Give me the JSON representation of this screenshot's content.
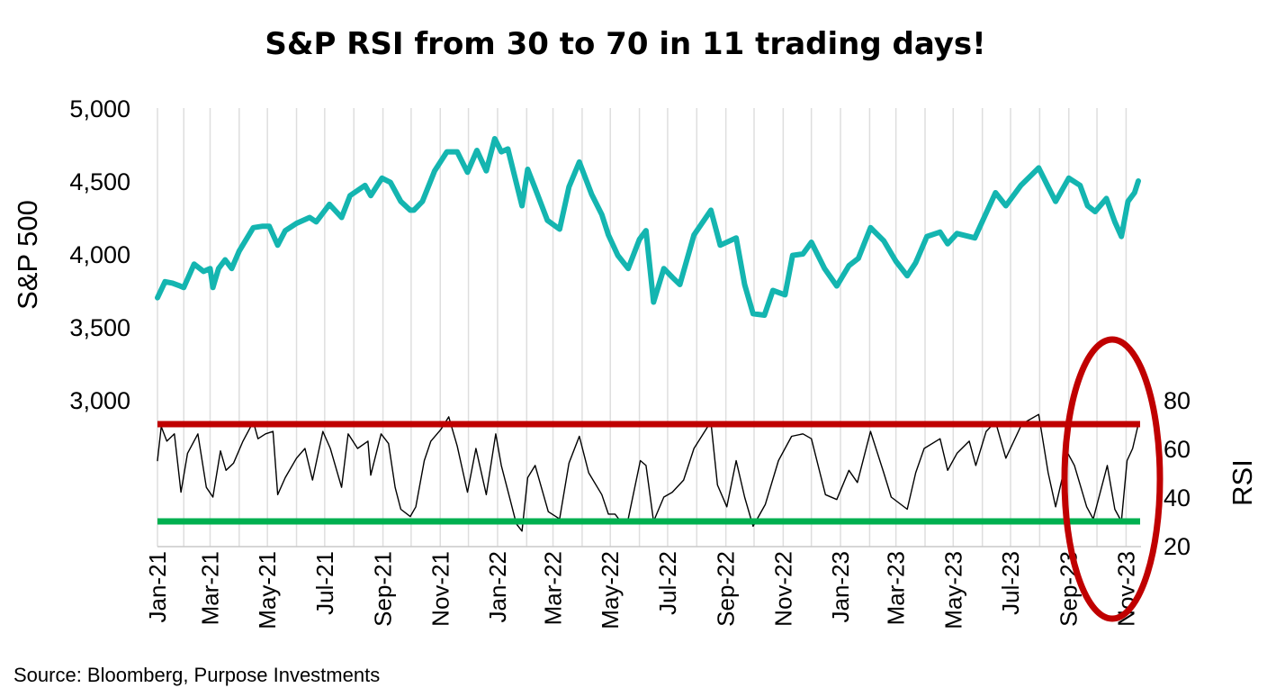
{
  "chart_data": {
    "type": "line",
    "title": "S&P RSI from 30 to 70 in 11 trading days!",
    "source": "Source: Bloomberg, Purpose Investments",
    "x_range": [
      "2021-01-04",
      "2023-11-14"
    ],
    "x_ticks": [
      "Jan-21",
      "Mar-21",
      "May-21",
      "Jul-21",
      "Sep-21",
      "Nov-21",
      "Jan-22",
      "Mar-22",
      "May-22",
      "Jul-22",
      "Sep-22",
      "Nov-22",
      "Jan-23",
      "Mar-23",
      "May-23",
      "Jul-23",
      "Sep-23",
      "Nov-23"
    ],
    "left_axis": {
      "label": "S&P 500",
      "ticks": [
        "5,000",
        "4,500",
        "4,000",
        "3,500",
        "3,000"
      ],
      "range": [
        2000,
        5000
      ]
    },
    "right_axis": {
      "label": "RSI",
      "ticks": [
        "80",
        "60",
        "40",
        "20"
      ],
      "range": [
        20,
        120
      ]
    },
    "reference_lines": [
      {
        "axis": "right",
        "value": 70,
        "color": "#c00000"
      },
      {
        "axis": "right",
        "value": 30,
        "color": "#00b050"
      }
    ],
    "annotation": {
      "shape": "ellipse",
      "color": "#c00000",
      "around": "Sep-23 to Nov-23"
    },
    "series": [
      {
        "key": "spx",
        "axis": "left",
        "color": "#14b5b0",
        "points": [
          [
            "2021-01-04",
            3700
          ],
          [
            "2021-01-12",
            3810
          ],
          [
            "2021-01-20",
            3800
          ],
          [
            "2021-01-28",
            3780
          ],
          [
            "2021-02-01",
            3770
          ],
          [
            "2021-02-12",
            3930
          ],
          [
            "2021-02-22",
            3880
          ],
          [
            "2021-03-01",
            3900
          ],
          [
            "2021-03-04",
            3770
          ],
          [
            "2021-03-10",
            3900
          ],
          [
            "2021-03-17",
            3960
          ],
          [
            "2021-03-24",
            3900
          ],
          [
            "2021-04-01",
            4020
          ],
          [
            "2021-04-16",
            4180
          ],
          [
            "2021-04-26",
            4190
          ],
          [
            "2021-05-03",
            4190
          ],
          [
            "2021-05-12",
            4060
          ],
          [
            "2021-05-20",
            4160
          ],
          [
            "2021-06-01",
            4210
          ],
          [
            "2021-06-15",
            4250
          ],
          [
            "2021-06-22",
            4220
          ],
          [
            "2021-07-06",
            4340
          ],
          [
            "2021-07-19",
            4250
          ],
          [
            "2021-07-28",
            4400
          ],
          [
            "2021-08-13",
            4470
          ],
          [
            "2021-08-19",
            4400
          ],
          [
            "2021-08-31",
            4520
          ],
          [
            "2021-09-09",
            4490
          ],
          [
            "2021-09-20",
            4360
          ],
          [
            "2021-09-30",
            4300
          ],
          [
            "2021-10-04",
            4300
          ],
          [
            "2021-10-13",
            4360
          ],
          [
            "2021-10-26",
            4570
          ],
          [
            "2021-11-08",
            4700
          ],
          [
            "2021-11-19",
            4700
          ],
          [
            "2021-11-30",
            4560
          ],
          [
            "2021-12-10",
            4710
          ],
          [
            "2021-12-20",
            4570
          ],
          [
            "2021-12-29",
            4790
          ],
          [
            "2022-01-05",
            4700
          ],
          [
            "2022-01-12",
            4720
          ],
          [
            "2022-01-27",
            4330
          ],
          [
            "2022-02-02",
            4580
          ],
          [
            "2022-02-10",
            4450
          ],
          [
            "2022-02-23",
            4230
          ],
          [
            "2022-03-08",
            4170
          ],
          [
            "2022-03-18",
            4460
          ],
          [
            "2022-03-29",
            4630
          ],
          [
            "2022-04-11",
            4410
          ],
          [
            "2022-04-22",
            4270
          ],
          [
            "2022-04-29",
            4130
          ],
          [
            "2022-05-09",
            3990
          ],
          [
            "2022-05-20",
            3900
          ],
          [
            "2022-06-01",
            4100
          ],
          [
            "2022-06-08",
            4160
          ],
          [
            "2022-06-16",
            3670
          ],
          [
            "2022-06-27",
            3900
          ],
          [
            "2022-07-06",
            3840
          ],
          [
            "2022-07-14",
            3790
          ],
          [
            "2022-07-29",
            4130
          ],
          [
            "2022-08-16",
            4300
          ],
          [
            "2022-08-26",
            4060
          ],
          [
            "2022-09-12",
            4110
          ],
          [
            "2022-09-21",
            3790
          ],
          [
            "2022-09-30",
            3590
          ],
          [
            "2022-10-12",
            3580
          ],
          [
            "2022-10-21",
            3750
          ],
          [
            "2022-11-03",
            3720
          ],
          [
            "2022-11-11",
            3990
          ],
          [
            "2022-11-22",
            4000
          ],
          [
            "2022-12-01",
            4080
          ],
          [
            "2022-12-15",
            3900
          ],
          [
            "2022-12-28",
            3780
          ],
          [
            "2023-01-10",
            3920
          ],
          [
            "2023-01-20",
            3970
          ],
          [
            "2023-02-02",
            4180
          ],
          [
            "2023-02-16",
            4090
          ],
          [
            "2023-03-01",
            3950
          ],
          [
            "2023-03-13",
            3850
          ],
          [
            "2023-03-22",
            3940
          ],
          [
            "2023-04-03",
            4120
          ],
          [
            "2023-04-17",
            4150
          ],
          [
            "2023-04-25",
            4070
          ],
          [
            "2023-05-05",
            4140
          ],
          [
            "2023-05-24",
            4110
          ],
          [
            "2023-06-05",
            4280
          ],
          [
            "2023-06-15",
            4420
          ],
          [
            "2023-06-26",
            4330
          ],
          [
            "2023-07-12",
            4470
          ],
          [
            "2023-07-31",
            4590
          ],
          [
            "2023-08-10",
            4460
          ],
          [
            "2023-08-18",
            4360
          ],
          [
            "2023-09-01",
            4520
          ],
          [
            "2023-09-13",
            4470
          ],
          [
            "2023-09-21",
            4330
          ],
          [
            "2023-09-29",
            4290
          ],
          [
            "2023-10-11",
            4380
          ],
          [
            "2023-10-20",
            4220
          ],
          [
            "2023-10-27",
            4120
          ],
          [
            "2023-11-03",
            4360
          ],
          [
            "2023-11-10",
            4420
          ],
          [
            "2023-11-14",
            4500
          ]
        ]
      },
      {
        "key": "rsi",
        "axis": "right",
        "color": "#000000",
        "points": [
          [
            "2021-01-04",
            55
          ],
          [
            "2021-01-08",
            69
          ],
          [
            "2021-01-14",
            63
          ],
          [
            "2021-01-22",
            66
          ],
          [
            "2021-01-29",
            42
          ],
          [
            "2021-02-05",
            58
          ],
          [
            "2021-02-16",
            66
          ],
          [
            "2021-02-25",
            44
          ],
          [
            "2021-03-04",
            40
          ],
          [
            "2021-03-12",
            59
          ],
          [
            "2021-03-18",
            51
          ],
          [
            "2021-03-26",
            54
          ],
          [
            "2021-04-05",
            63
          ],
          [
            "2021-04-16",
            71
          ],
          [
            "2021-04-21",
            64
          ],
          [
            "2021-04-29",
            66
          ],
          [
            "2021-05-07",
            67
          ],
          [
            "2021-05-12",
            41
          ],
          [
            "2021-05-20",
            48
          ],
          [
            "2021-06-01",
            56
          ],
          [
            "2021-06-10",
            60
          ],
          [
            "2021-06-18",
            47
          ],
          [
            "2021-06-29",
            67
          ],
          [
            "2021-07-07",
            60
          ],
          [
            "2021-07-19",
            44
          ],
          [
            "2021-07-26",
            66
          ],
          [
            "2021-08-05",
            60
          ],
          [
            "2021-08-16",
            63
          ],
          [
            "2021-08-19",
            49
          ],
          [
            "2021-08-30",
            66
          ],
          [
            "2021-09-07",
            62
          ],
          [
            "2021-09-14",
            44
          ],
          [
            "2021-09-20",
            35
          ],
          [
            "2021-09-30",
            32
          ],
          [
            "2021-10-06",
            36
          ],
          [
            "2021-10-15",
            55
          ],
          [
            "2021-10-22",
            63
          ],
          [
            "2021-11-02",
            68
          ],
          [
            "2021-11-10",
            73
          ],
          [
            "2021-11-19",
            61
          ],
          [
            "2021-11-30",
            42
          ],
          [
            "2021-12-09",
            60
          ],
          [
            "2021-12-20",
            41
          ],
          [
            "2021-12-30",
            66
          ],
          [
            "2022-01-05",
            53
          ],
          [
            "2022-01-13",
            41
          ],
          [
            "2022-01-21",
            29
          ],
          [
            "2022-01-27",
            26
          ],
          [
            "2022-02-02",
            48
          ],
          [
            "2022-02-10",
            53
          ],
          [
            "2022-02-24",
            34
          ],
          [
            "2022-03-08",
            31
          ],
          [
            "2022-03-18",
            54
          ],
          [
            "2022-03-29",
            65
          ],
          [
            "2022-04-08",
            50
          ],
          [
            "2022-04-22",
            41
          ],
          [
            "2022-04-29",
            33
          ],
          [
            "2022-05-06",
            33
          ],
          [
            "2022-05-12",
            30
          ],
          [
            "2022-05-20",
            31
          ],
          [
            "2022-06-02",
            55
          ],
          [
            "2022-06-08",
            53
          ],
          [
            "2022-06-16",
            30
          ],
          [
            "2022-06-27",
            40
          ],
          [
            "2022-07-06",
            42
          ],
          [
            "2022-07-18",
            47
          ],
          [
            "2022-07-29",
            60
          ],
          [
            "2022-08-16",
            71
          ],
          [
            "2022-08-23",
            45
          ],
          [
            "2022-09-02",
            36
          ],
          [
            "2022-09-12",
            55
          ],
          [
            "2022-09-21",
            40
          ],
          [
            "2022-09-30",
            28
          ],
          [
            "2022-10-13",
            37
          ],
          [
            "2022-10-27",
            55
          ],
          [
            "2022-11-10",
            65
          ],
          [
            "2022-11-22",
            66
          ],
          [
            "2022-12-01",
            64
          ],
          [
            "2022-12-16",
            41
          ],
          [
            "2022-12-28",
            39
          ],
          [
            "2023-01-10",
            51
          ],
          [
            "2023-01-19",
            46
          ],
          [
            "2023-02-02",
            67
          ],
          [
            "2023-02-16",
            50
          ],
          [
            "2023-02-24",
            40
          ],
          [
            "2023-03-13",
            35
          ],
          [
            "2023-03-22",
            50
          ],
          [
            "2023-03-31",
            60
          ],
          [
            "2023-04-17",
            64
          ],
          [
            "2023-04-25",
            51
          ],
          [
            "2023-05-05",
            58
          ],
          [
            "2023-05-18",
            63
          ],
          [
            "2023-05-25",
            53
          ],
          [
            "2023-06-05",
            67
          ],
          [
            "2023-06-15",
            71
          ],
          [
            "2023-06-26",
            56
          ],
          [
            "2023-07-13",
            70
          ],
          [
            "2023-07-31",
            74
          ],
          [
            "2023-08-10",
            50
          ],
          [
            "2023-08-18",
            36
          ],
          [
            "2023-08-31",
            58
          ],
          [
            "2023-09-07",
            53
          ],
          [
            "2023-09-20",
            36
          ],
          [
            "2023-09-27",
            31
          ],
          [
            "2023-10-12",
            53
          ],
          [
            "2023-10-20",
            35
          ],
          [
            "2023-10-27",
            30
          ],
          [
            "2023-11-02",
            55
          ],
          [
            "2023-11-08",
            60
          ],
          [
            "2023-11-14",
            70
          ]
        ]
      }
    ]
  }
}
